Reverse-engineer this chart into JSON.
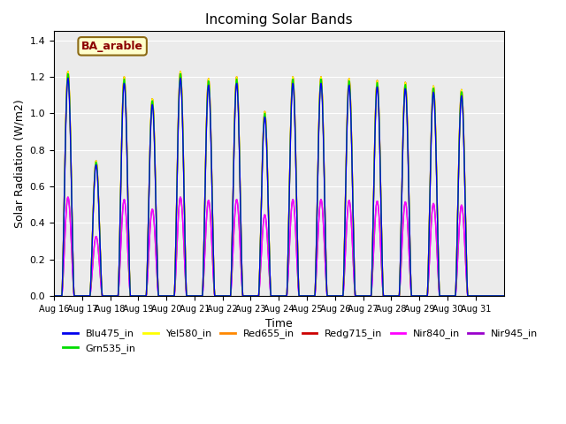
{
  "title": "Incoming Solar Bands",
  "xlabel": "Time",
  "ylabel": "Solar Radiation (W/m2)",
  "annotation": "BA_arable",
  "ylim": [
    0,
    1.45
  ],
  "num_days": 16,
  "series_order": [
    "Nir945_in",
    "Nir840_in",
    "Redg715_in",
    "Red655_in",
    "Yel580_in",
    "Grn535_in",
    "Blu475_in"
  ],
  "series": {
    "Blu475_in": {
      "color": "#0000ee",
      "lw": 1.0,
      "peak_scale": 0.97
    },
    "Grn535_in": {
      "color": "#00dd00",
      "lw": 1.0,
      "peak_scale": 0.99
    },
    "Yel580_in": {
      "color": "#ffff00",
      "lw": 1.0,
      "peak_scale": 1.0
    },
    "Red655_in": {
      "color": "#ff8800",
      "lw": 1.0,
      "peak_scale": 1.0
    },
    "Redg715_in": {
      "color": "#cc0000",
      "lw": 1.0,
      "peak_scale": 1.0
    },
    "Nir840_in": {
      "color": "#ff00ff",
      "lw": 1.0,
      "peak_scale": 0.44
    },
    "Nir945_in": {
      "color": "#9900cc",
      "lw": 1.0,
      "peak_scale": 0.44
    }
  },
  "legend_order": [
    "Blu475_in",
    "Grn535_in",
    "Yel580_in",
    "Red655_in",
    "Redg715_in",
    "Nir840_in",
    "Nir945_in"
  ],
  "day_peaks": [
    1.23,
    0.74,
    1.2,
    1.08,
    1.23,
    1.19,
    1.2,
    1.01,
    1.2,
    1.2,
    1.19,
    1.18,
    1.17,
    1.15,
    1.13,
    0.0
  ],
  "tick_labels": [
    "Aug 16",
    "Aug 17",
    "Aug 18",
    "Aug 19",
    "Aug 20",
    "Aug 21",
    "Aug 22",
    "Aug 23",
    "Aug 24",
    "Aug 25",
    "Aug 26",
    "Aug 27",
    "Aug 28",
    "Aug 29",
    "Aug 30",
    "Aug 31"
  ],
  "bg_color": "#ebebeb",
  "fig_bg": "#ffffff"
}
